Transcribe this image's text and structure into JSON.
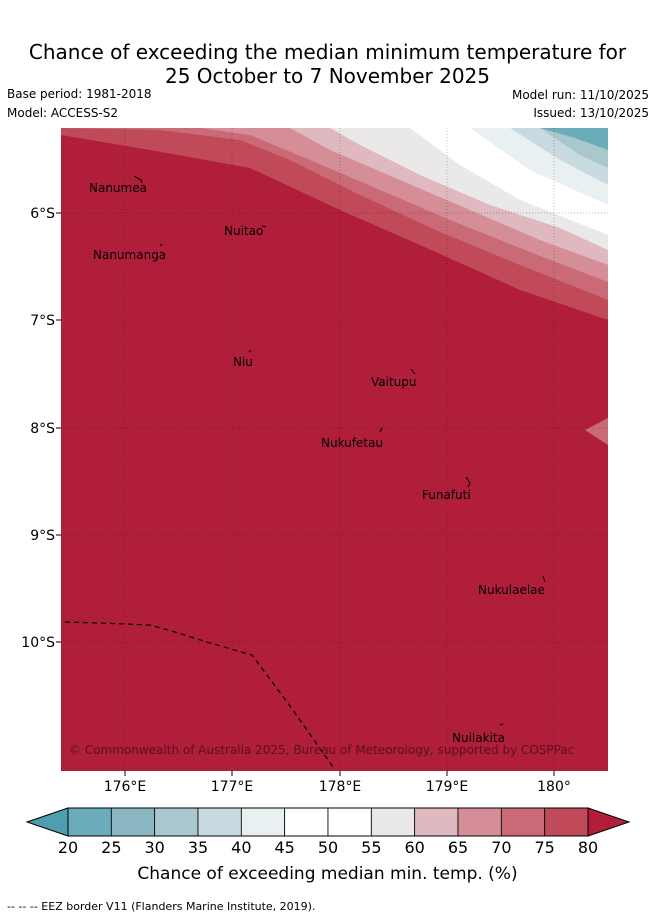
{
  "title": {
    "line1": "Chance of exceeding the median minimum temperature for",
    "line2": "25 October to 7 November 2025"
  },
  "meta": {
    "base_period": "Base period: 1981-2018",
    "model": "Model: ACCESS-S2",
    "model_run": "Model run: 11/10/2025",
    "issued": "Issued: 13/10/2025"
  },
  "map": {
    "lat_ticks": [
      "6°S",
      "7°S",
      "8°S",
      "9°S",
      "10°S"
    ],
    "lon_ticks": [
      "176°E",
      "177°E",
      "178°E",
      "179°E",
      "180°"
    ],
    "places": [
      "Nanumea",
      "Nuitao",
      "Nanumanga",
      "Niu",
      "Vaitupu",
      "Nukufetau",
      "Funafuti",
      "Nukulaelae",
      "Nuilakita"
    ],
    "copyright": "© Commonwealth of Australia 2025, Bureau of Meteorology, supported by COSPPac"
  },
  "colorbar": {
    "ticks": [
      "20",
      "25",
      "30",
      "35",
      "40",
      "45",
      "50",
      "55",
      "60",
      "65",
      "70",
      "75",
      "80"
    ],
    "colors": [
      "#6aacba",
      "#8bb7c2",
      "#a8c8ce",
      "#c8dadf",
      "#e9f0f2",
      "#ffffff",
      "#ffffff",
      "#ebe8ea",
      "#e0b8bf",
      "#d58e98",
      "#c96a76",
      "#c04a58",
      "#b01e3a"
    ],
    "low_color": "#4d9fb0",
    "high_color": "#b11e3a",
    "label": "Chance of exceeding median min. temp. (%)"
  },
  "footer": {
    "legend": "--  --  -- EEZ border V11 (Flanders Marine Institute, 2019)."
  }
}
